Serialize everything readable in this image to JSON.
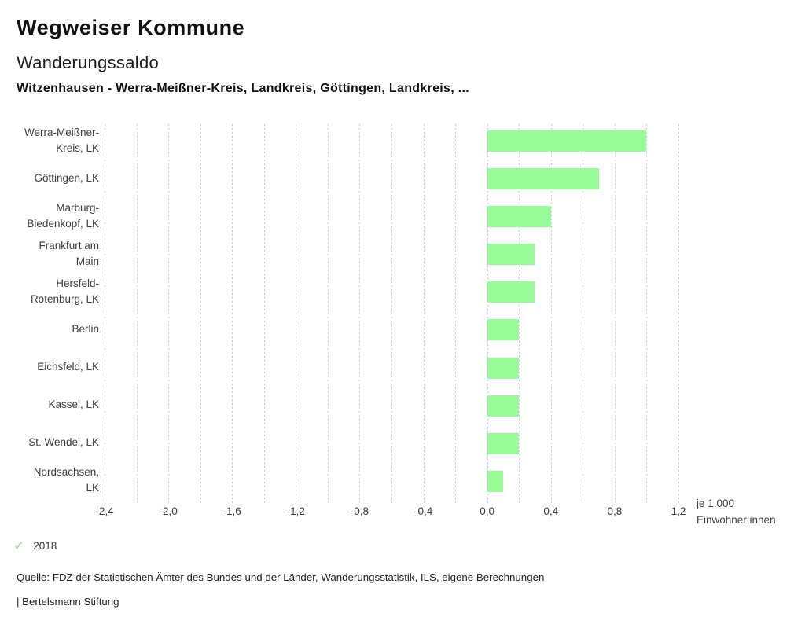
{
  "header": {
    "app_title": "Wegweiser Kommune",
    "chart_title": "Wanderungssaldo",
    "subtitle": "Witzenhausen - Werra-Meißner-Kreis, Landkreis, Göttingen, Landkreis, ..."
  },
  "chart_data": {
    "type": "bar",
    "orientation": "horizontal",
    "title": "Wanderungssaldo",
    "categories": [
      "Werra-Meißner-Kreis, LK",
      "Göttingen, LK",
      "Marburg-Biedenkopf, LK",
      "Frankfurt am Main",
      "Hersfeld-Rotenburg, LK",
      "Berlin",
      "Eichsfeld, LK",
      "Kassel, LK",
      "St. Wendel, LK",
      "Nordsachsen, LK"
    ],
    "category_label_lines": [
      [
        "Werra-Meißner-",
        "Kreis, LK"
      ],
      [
        "Göttingen, LK"
      ],
      [
        "Marburg-",
        "Biedenkopf, LK"
      ],
      [
        "Frankfurt am",
        "Main"
      ],
      [
        "Hersfeld-",
        "Rotenburg, LK"
      ],
      [
        "Berlin"
      ],
      [
        "Eichsfeld, LK"
      ],
      [
        "Kassel, LK"
      ],
      [
        "St. Wendel, LK"
      ],
      [
        "Nordsachsen,",
        "LK"
      ]
    ],
    "values": [
      1.0,
      0.7,
      0.4,
      0.3,
      0.3,
      0.2,
      0.2,
      0.2,
      0.2,
      0.1
    ],
    "xlabel": "je 1.000\nEinwohner:innen",
    "ylabel": "",
    "xlim": [
      -2.4,
      1.2
    ],
    "tick_step": 0.4,
    "grid_step": 0.2,
    "tick_labels": [
      "-2,4",
      "-2,0",
      "-1,6",
      "-1,2",
      "-0,8",
      "-0,4",
      "0,0",
      "0,4",
      "0,8",
      "1,2"
    ],
    "grid": true,
    "legend_position": "bottom",
    "bar_color": "#98fb98",
    "grid_color": "#c9c9c9"
  },
  "legend": {
    "check_icon": "✓",
    "check_color": "#8fdc8f",
    "year": "2018"
  },
  "footer": {
    "source": "Quelle: FDZ der Statistischen Ämter des Bundes und der Länder, Wanderungsstatistik, ILS, eigene Berechnungen",
    "attribution": "| Bertelsmann Stiftung"
  }
}
